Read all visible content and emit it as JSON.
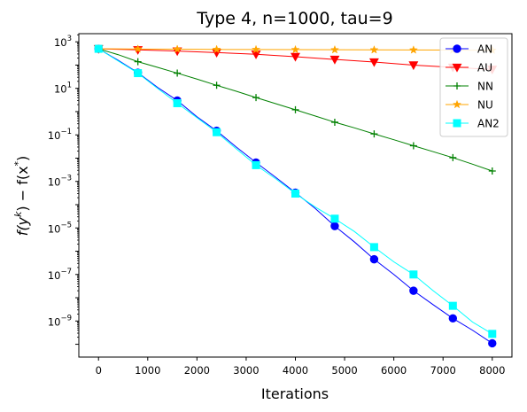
{
  "chart_data": {
    "type": "line",
    "title": "Type 4, n=1000, tau=9",
    "xlabel": "Iterations",
    "ylabel_main": "f(y",
    "ylabel_sup1": "k",
    "ylabel_mid": ") − f(x",
    "ylabel_sup2": "*",
    "ylabel_end": ")",
    "yscale": "log",
    "xlim": [
      -400,
      8400
    ],
    "ylim_exp": [
      -10.55,
      3.35
    ],
    "xticks": [
      0,
      1000,
      2000,
      3000,
      4000,
      5000,
      6000,
      7000,
      8000
    ],
    "xtick_labels": [
      "0",
      "1000",
      "2000",
      "3000",
      "4000",
      "5000",
      "6000",
      "7000",
      "8000"
    ],
    "yticks_exp": [
      -9,
      -7,
      -5,
      -3,
      -1,
      1,
      3
    ],
    "ytick_base": "10",
    "ytick_exps": [
      "−9",
      "−7",
      "−5",
      "−3",
      "−1",
      "1",
      "3"
    ],
    "grid": false,
    "legend_position": "top-right",
    "marker_x": [
      0,
      800,
      1600,
      2400,
      3200,
      4000,
      4800,
      5600,
      6400,
      7200,
      8000
    ],
    "series": [
      {
        "name": "AN",
        "color": "#0000ff",
        "marker": "circle",
        "curve_x": [
          0,
          400,
          800,
          1200,
          1600,
          2000,
          2400,
          2800,
          3200,
          3600,
          4000,
          4400,
          4800,
          5200,
          5600,
          6000,
          6400,
          6800,
          7200,
          7600,
          8000
        ],
        "curve_y": [
          500,
          160,
          47,
          11,
          3.0,
          0.6,
          0.15,
          0.03,
          0.0065,
          0.0015,
          0.00033,
          7e-05,
          1.2e-05,
          2.5e-06,
          4.5e-07,
          1e-07,
          2e-08,
          5e-09,
          1.3e-09,
          4e-10,
          1.1e-10
        ],
        "marker_y": [
          500,
          47,
          3.0,
          0.15,
          0.0065,
          0.00033,
          1.2e-05,
          4.5e-07,
          2e-08,
          1.3e-09,
          1.1e-10
        ]
      },
      {
        "name": "AU",
        "color": "#ff0000",
        "marker": "triangle-down",
        "curve_x": [
          0,
          800,
          1600,
          2400,
          3200,
          4000,
          4800,
          5600,
          6400,
          7200,
          8000
        ],
        "curve_y": [
          500,
          450,
          400,
          345,
          290,
          230,
          175,
          135,
          100,
          80,
          65
        ],
        "marker_y": [
          500,
          450,
          400,
          345,
          290,
          230,
          175,
          135,
          100,
          80,
          65
        ]
      },
      {
        "name": "NN",
        "color": "#008000",
        "marker": "plus",
        "curve_x": [
          0,
          400,
          800,
          1200,
          1600,
          2000,
          2400,
          2800,
          3200,
          3600,
          4000,
          4400,
          4800,
          5200,
          5600,
          6000,
          6400,
          6800,
          7200,
          7600,
          8000
        ],
        "curve_y": [
          500,
          280,
          140,
          80,
          45,
          25,
          13.5,
          7.5,
          4.0,
          2.2,
          1.2,
          0.65,
          0.35,
          0.2,
          0.11,
          0.062,
          0.034,
          0.019,
          0.0105,
          0.0055,
          0.0028
        ],
        "marker_y": [
          500,
          140,
          45,
          13.5,
          4.0,
          1.2,
          0.35,
          0.11,
          0.034,
          0.0105,
          0.0028
        ]
      },
      {
        "name": "NU",
        "color": "#ffa500",
        "marker": "star",
        "curve_x": [
          0,
          800,
          1600,
          2400,
          3200,
          4000,
          4800,
          5600,
          6400,
          7200,
          8000
        ],
        "curve_y": [
          500,
          490,
          480,
          470,
          465,
          460,
          455,
          450,
          445,
          440,
          430
        ],
        "marker_y": [
          500,
          490,
          480,
          470,
          465,
          460,
          455,
          450,
          445,
          440,
          430
        ]
      },
      {
        "name": "AN2",
        "color": "#00ffff",
        "marker": "square",
        "curve_x": [
          0,
          400,
          800,
          1200,
          1600,
          2000,
          2400,
          2800,
          3200,
          3600,
          4000,
          4400,
          4800,
          5200,
          5600,
          6000,
          6400,
          6800,
          7200,
          7600,
          8000
        ],
        "curve_y": [
          500,
          150,
          45,
          10,
          2.3,
          0.55,
          0.13,
          0.025,
          0.005,
          0.0013,
          0.0003,
          8e-05,
          2.5e-05,
          7e-06,
          1.5e-06,
          3.5e-07,
          1e-07,
          2e-08,
          4.5e-09,
          9e-10,
          2.8e-10
        ],
        "marker_y": [
          500,
          45,
          2.3,
          0.13,
          0.005,
          0.0003,
          2.5e-05,
          1.5e-06,
          1e-07,
          4.5e-09,
          2.8e-10
        ]
      }
    ]
  }
}
